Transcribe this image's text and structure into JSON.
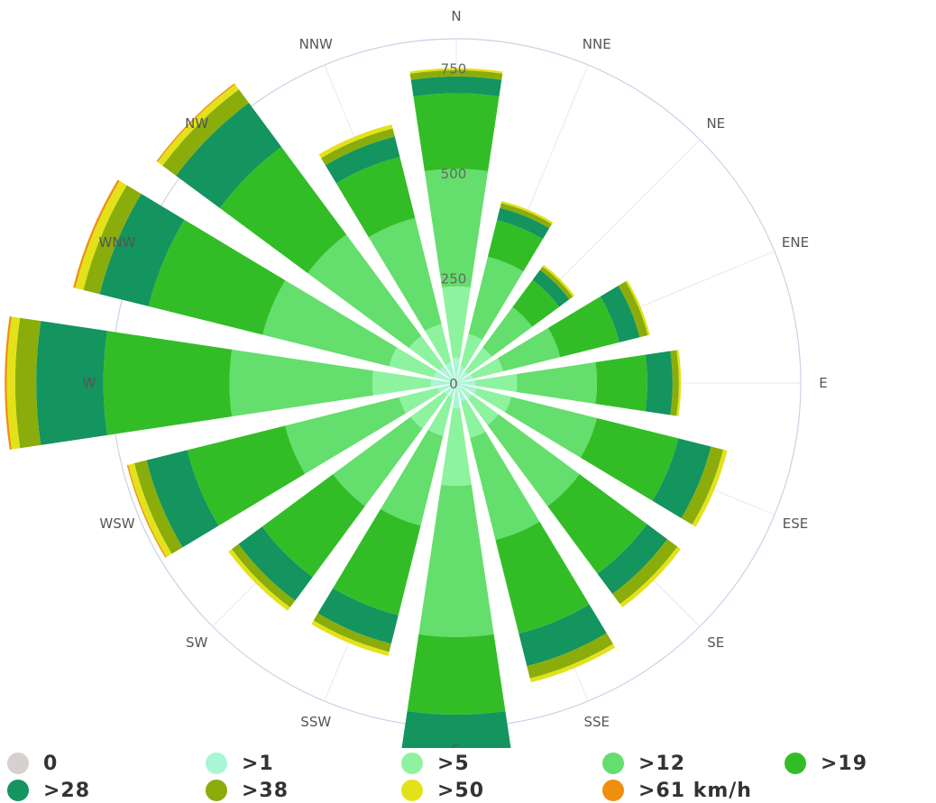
{
  "chart_data": {
    "type": "windrose",
    "directions": [
      "N",
      "NNE",
      "NE",
      "ENE",
      "E",
      "ESE",
      "SE",
      "SSE",
      "S",
      "SSW",
      "SW",
      "WSW",
      "W",
      "WNW",
      "NW",
      "NNW"
    ],
    "radial_ticks": [
      "0",
      "250",
      "500",
      "750"
    ],
    "r_max": 820,
    "series": [
      {
        "name": "0",
        "color": "#d6d0cf",
        "values": [
          5,
          5,
          5,
          5,
          5,
          5,
          5,
          5,
          5,
          5,
          5,
          5,
          5,
          5,
          5,
          5
        ]
      },
      {
        "name": ">1",
        "color": "#a8f6d3",
        "values": [
          55,
          35,
          30,
          35,
          40,
          45,
          40,
          40,
          55,
          30,
          30,
          40,
          55,
          50,
          45,
          45
        ]
      },
      {
        "name": ">5",
        "color": "#8df39f",
        "values": [
          170,
          80,
          70,
          75,
          100,
          85,
          80,
          90,
          185,
          95,
          100,
          95,
          140,
          110,
          90,
          95
        ]
      },
      {
        "name": ">12",
        "color": "#64de6c",
        "values": [
          280,
          190,
          120,
          140,
          190,
          210,
          240,
          250,
          360,
          220,
          230,
          280,
          340,
          310,
          300,
          260
        ]
      },
      {
        "name": ">19",
        "color": "#32bd27",
        "values": [
          180,
          90,
          80,
          145,
          120,
          200,
          200,
          230,
          185,
          220,
          210,
          240,
          300,
          280,
          260,
          150
        ]
      },
      {
        "name": ">28",
        "color": "#14945f",
        "values": [
          40,
          30,
          30,
          50,
          60,
          80,
          60,
          80,
          100,
          70,
          70,
          100,
          160,
          120,
          130,
          50
        ]
      },
      {
        "name": ">38",
        "color": "#8aad0b",
        "values": [
          15,
          12,
          10,
          20,
          15,
          30,
          30,
          30,
          30,
          20,
          20,
          30,
          50,
          40,
          40,
          20
        ]
      },
      {
        "name": ">50",
        "color": "#e3e21a",
        "values": [
          5,
          5,
          5,
          5,
          5,
          10,
          10,
          10,
          10,
          10,
          10,
          15,
          20,
          20,
          15,
          10
        ]
      },
      {
        "name": ">61 km/h",
        "color": "#ee900d",
        "values": [
          0,
          0,
          0,
          0,
          0,
          0,
          0,
          0,
          0,
          0,
          0,
          3,
          5,
          5,
          3,
          0
        ]
      }
    ]
  }
}
